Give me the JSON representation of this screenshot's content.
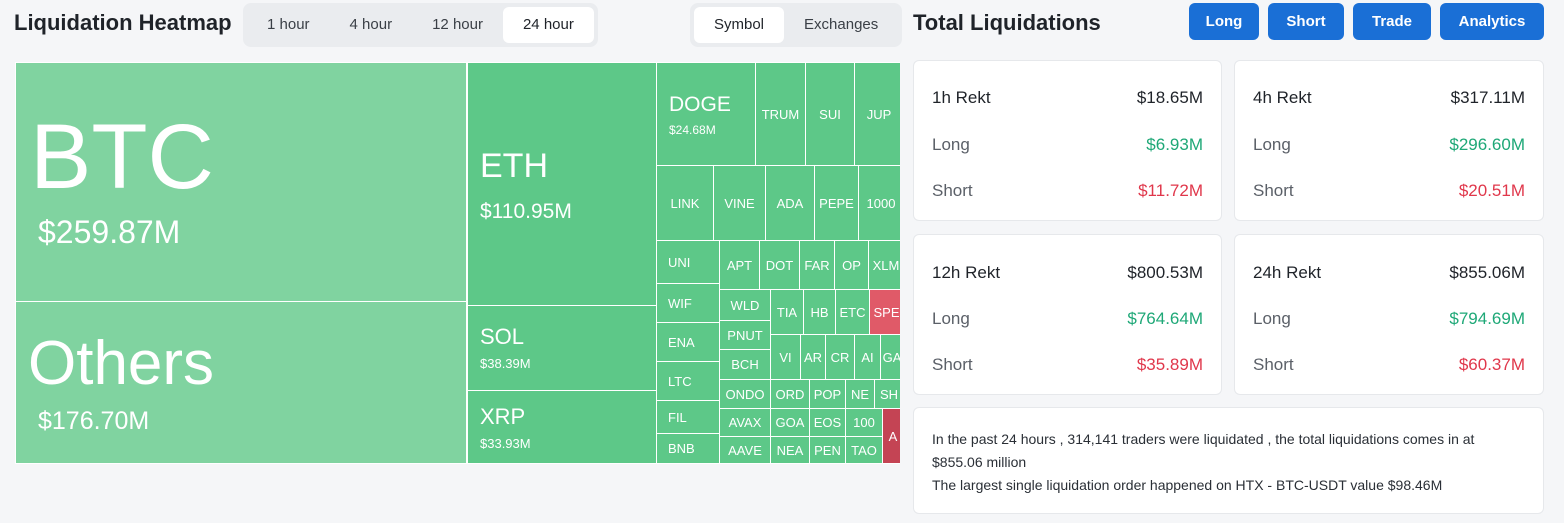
{
  "heatmap": {
    "title": "Liquidation Heatmap",
    "time_options": [
      "1 hour",
      "4 hour",
      "12 hour",
      "24 hour"
    ],
    "time_selected": "24 hour",
    "view_options": [
      "Symbol",
      "Exchanges"
    ],
    "view_selected": "Symbol",
    "tiles": {
      "btc": {
        "symbol": "BTC",
        "value": "$259.87M"
      },
      "others": {
        "symbol": "Others",
        "value": "$176.70M"
      },
      "eth": {
        "symbol": "ETH",
        "value": "$110.95M"
      },
      "sol": {
        "symbol": "SOL",
        "value": "$38.39M"
      },
      "xrp": {
        "symbol": "XRP",
        "value": "$33.93M"
      },
      "doge": {
        "symbol": "DOGE",
        "value": "$24.68M"
      },
      "small": [
        "TRUM",
        "SUI",
        "JUP",
        "LINK",
        "VINE",
        "ADA",
        "PEPE",
        "1000",
        "UNI",
        "APT",
        "DOT",
        "FAR",
        "OP",
        "XLM",
        "WIF",
        "WLD",
        "TIA",
        "HB",
        "ETC",
        "SPE",
        "ENA",
        "PNUT",
        "VI",
        "AR",
        "CR",
        "AI",
        "GA",
        "BCH",
        "LTC",
        "ONDO",
        "ORD",
        "POP",
        "NE",
        "SH",
        "FIL",
        "AVAX",
        "GOA",
        "EOS",
        "100",
        "A",
        "BNB",
        "AAVE",
        "NEA",
        "PEN",
        "TAO"
      ]
    }
  },
  "total": {
    "title": "Total Liquidations",
    "buttons": [
      "Long",
      "Short",
      "Trade",
      "Analytics"
    ],
    "cards": [
      {
        "label": "1h Rekt",
        "total": "$18.65M",
        "long_label": "Long",
        "long": "$6.93M",
        "short_label": "Short",
        "short": "$11.72M"
      },
      {
        "label": "4h Rekt",
        "total": "$317.11M",
        "long_label": "Long",
        "long": "$296.60M",
        "short_label": "Short",
        "short": "$20.51M"
      },
      {
        "label": "12h Rekt",
        "total": "$800.53M",
        "long_label": "Long",
        "long": "$764.64M",
        "short_label": "Short",
        "short": "$35.89M"
      },
      {
        "label": "24h Rekt",
        "total": "$855.06M",
        "long_label": "Long",
        "long": "$794.69M",
        "short_label": "Short",
        "short": "$60.37M"
      }
    ],
    "summary_line1": "In the past 24 hours , 314,141 traders were liquidated , the total liquidations comes in at $855.06 million",
    "summary_line2": "The largest single liquidation order happened on HTX - BTC-USDT value $98.46M"
  },
  "colors": {
    "accent": "#1a6fd6",
    "long": "#1ea877",
    "short": "#e0374b",
    "tile_green": "#5dc888",
    "tile_red": "#e05a68"
  }
}
